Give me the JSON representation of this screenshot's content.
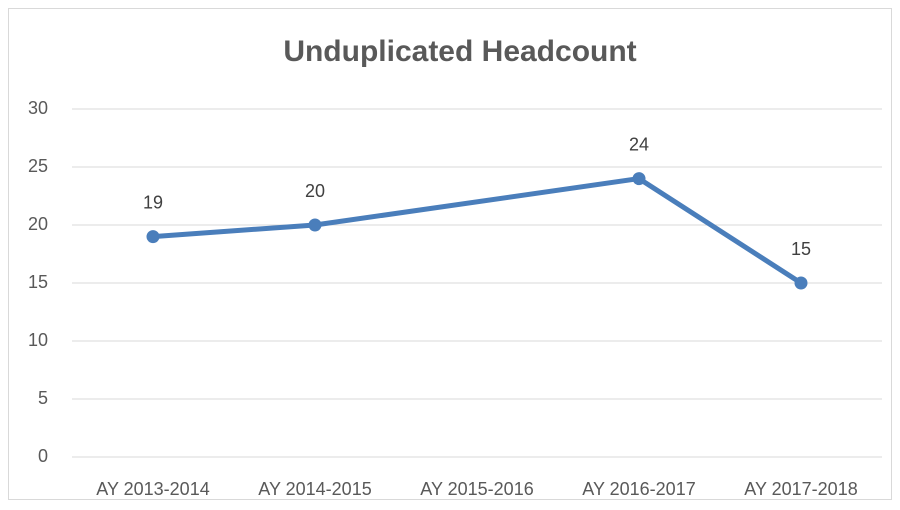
{
  "chart_data": {
    "type": "line",
    "title": "Unduplicated Headcount",
    "categories": [
      "AY 2013-2014",
      "AY 2014-2015",
      "AY 2015-2016",
      "AY 2016-2017",
      "AY 2017-2018"
    ],
    "series": [
      {
        "name": "Unduplicated Headcount",
        "color": "#4a7ebb",
        "values": [
          19,
          20,
          null,
          24,
          15
        ]
      }
    ],
    "ylim": [
      0,
      30
    ],
    "yticks": [
      0,
      5,
      10,
      15,
      20,
      25,
      30
    ],
    "grid": true,
    "span_gaps": true,
    "data_labels": true,
    "legend": false
  }
}
